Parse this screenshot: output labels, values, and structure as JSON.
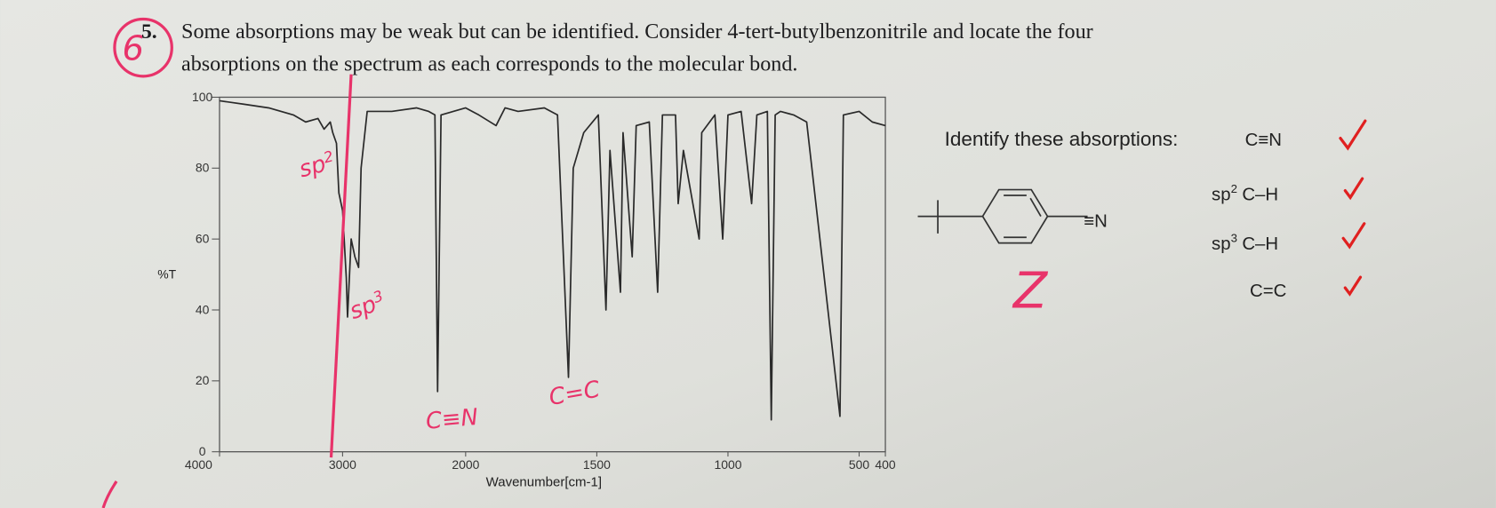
{
  "question": {
    "number": "5.",
    "text_lines": [
      "Some absorptions may be weak but can be identified. Consider 4-tert-butylbenzonitrile and locate the four",
      "absorptions on the spectrum as each corresponds to the molecular bond."
    ]
  },
  "chart_data": {
    "type": "line",
    "x": [
      4000,
      3800,
      3600,
      3400,
      3300,
      3200,
      3150,
      3100,
      3080,
      3050,
      3030,
      3000,
      2970,
      2960,
      2930,
      2900,
      2870,
      2850,
      2800,
      2600,
      2400,
      2300,
      2250,
      2228,
      2200,
      2100,
      2000,
      1950,
      1884,
      1850,
      1800,
      1700,
      1650,
      1608,
      1590,
      1550,
      1494,
      1465,
      1450,
      1410,
      1400,
      1365,
      1350,
      1300,
      1268,
      1250,
      1200,
      1190,
      1170,
      1110,
      1100,
      1050,
      1020,
      1000,
      950,
      910,
      890,
      850,
      835,
      820,
      800,
      750,
      700,
      573,
      560,
      500,
      450,
      400
    ],
    "values": [
      99,
      98,
      97,
      95,
      93,
      94,
      91,
      93,
      90,
      87,
      73,
      68,
      49,
      38,
      60,
      55,
      52,
      80,
      96,
      96,
      97,
      96,
      95,
      17,
      95,
      96,
      97,
      95,
      92,
      97,
      96,
      97,
      95,
      21,
      80,
      90,
      95,
      40,
      85,
      45,
      90,
      55,
      92,
      93,
      45,
      95,
      95,
      70,
      85,
      60,
      90,
      95,
      60,
      95,
      96,
      70,
      95,
      96,
      9,
      95,
      96,
      95,
      93,
      10,
      95,
      96,
      93,
      92
    ],
    "color": "#2a2a2a",
    "xlim": [
      4000,
      400
    ],
    "ylim": [
      0,
      100
    ],
    "xticks": [
      4000,
      3000,
      2000,
      1500,
      1000,
      500,
      400
    ],
    "yticks": [
      0,
      20,
      40,
      60,
      80,
      100
    ],
    "x_label": "Wavenumber[cm-1]",
    "y_label": "%T"
  },
  "spectrum_notes": [
    {
      "base": "sp",
      "sup": "2"
    },
    {
      "base": "sp",
      "sup": "3"
    },
    {
      "label": "C≡N"
    },
    {
      "label": "C=C"
    }
  ],
  "absorptions": {
    "prompt": "Identify these absorptions:",
    "items": [
      {
        "label": "C≡N"
      },
      {
        "base": "sp",
        "sup": "2",
        "label": "C–H"
      },
      {
        "base": "sp",
        "sup": "3",
        "label": "C–H"
      },
      {
        "label": "C=C"
      }
    ]
  },
  "molecule": {
    "nitrile_label": "≡N"
  },
  "handwriting": {
    "item_number": "6",
    "answer": "Z"
  }
}
